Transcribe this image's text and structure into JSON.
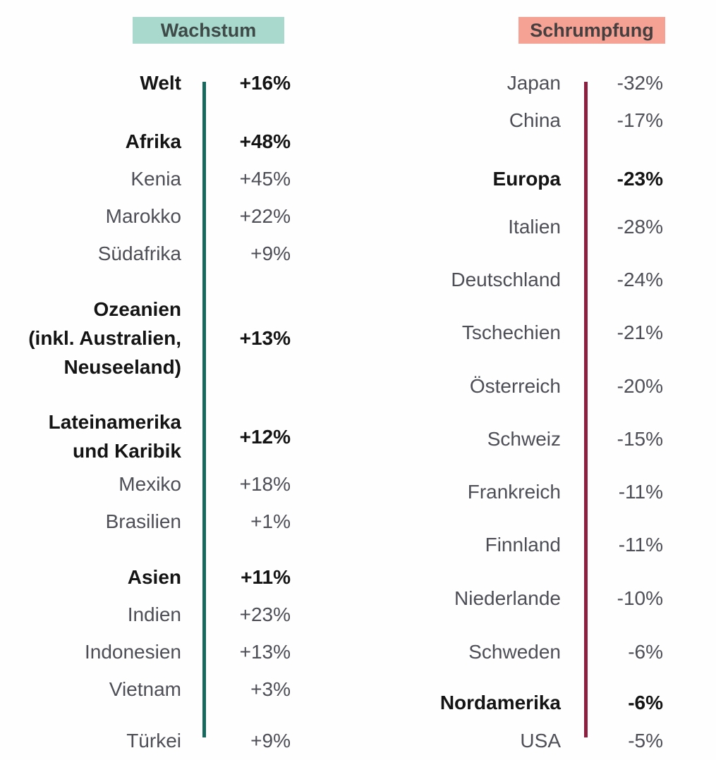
{
  "page": {
    "background": "#fefefe"
  },
  "chart_data": {
    "type": "table",
    "title": "",
    "legend_position": "none",
    "columns": [
      {
        "header": "Wachstum",
        "header_bg": "#a9d8cd",
        "header_text_color": "#3e4a48",
        "line_color": "#17695e",
        "rows": [
          {
            "label": "Welt",
            "value": "+16%",
            "value_num": 16,
            "bold": true,
            "gap": 0
          },
          {
            "label": "Afrika",
            "value": "+48%",
            "value_num": 48,
            "bold": true,
            "gap": 30
          },
          {
            "label": "Kenia",
            "value": "+45%",
            "value_num": 45,
            "bold": false,
            "gap": 0
          },
          {
            "label": "Marokko",
            "value": "+22%",
            "value_num": 22,
            "bold": false,
            "gap": 0
          },
          {
            "label": "Südafrika",
            "value": "+9%",
            "value_num": 9,
            "bold": false,
            "gap": 0
          },
          {
            "label": "Ozeanien (inkl. Australien, Neuseeland)",
            "label_lines": [
              "Ozeanien",
              "(inkl. Australien,",
              "Neuseeland)"
            ],
            "value": "+13%",
            "value_num": 13,
            "bold": true,
            "gap": 32
          },
          {
            "label": "Lateinamerika und Karibik",
            "label_lines": [
              "Lateinamerika",
              "und Karibik"
            ],
            "value": "+12%",
            "value_num": 12,
            "bold": true,
            "gap": 37
          },
          {
            "label": "Mexiko",
            "value": "+18%",
            "value_num": 18,
            "bold": false,
            "gap": 0
          },
          {
            "label": "Brasilien",
            "value": "+1%",
            "value_num": 1,
            "bold": false,
            "gap": 0
          },
          {
            "label": "Asien",
            "value": "+11%",
            "value_num": 11,
            "bold": true,
            "gap": 26
          },
          {
            "label": "Indien",
            "value": "+23%",
            "value_num": 23,
            "bold": false,
            "gap": 0
          },
          {
            "label": "Indonesien",
            "value": "+13%",
            "value_num": 13,
            "bold": false,
            "gap": 0
          },
          {
            "label": "Vietnam",
            "value": "+3%",
            "value_num": 3,
            "bold": false,
            "gap": 0
          },
          {
            "label": "Türkei",
            "value": "+9%",
            "value_num": 9,
            "bold": false,
            "gap": 20
          }
        ]
      },
      {
        "header": "Schrumpfung",
        "header_bg": "#f5a294",
        "header_text_color": "#463f40",
        "line_color": "#8c1f40",
        "rows": [
          {
            "label": "Japan",
            "value": "-32%",
            "value_num": -32,
            "bold": false,
            "gap": 0
          },
          {
            "label": "China",
            "value": "-17%",
            "value_num": -17,
            "bold": false,
            "gap": 0
          },
          {
            "label": "Europa",
            "value": "-23%",
            "value_num": -23,
            "bold": true,
            "gap": 30
          },
          {
            "label": "Italien",
            "value": "-28%",
            "value_num": -28,
            "bold": false,
            "gap": 15
          },
          {
            "label": "Deutschland",
            "value": "-24%",
            "value_num": -24,
            "bold": false,
            "gap": 22
          },
          {
            "label": "Tschechien",
            "value": "-21%",
            "value_num": -21,
            "bold": false,
            "gap": 22
          },
          {
            "label": "Österreich",
            "value": "-20%",
            "value_num": -20,
            "bold": false,
            "gap": 23
          },
          {
            "label": "Schweiz",
            "value": "-15%",
            "value_num": -15,
            "bold": false,
            "gap": 22
          },
          {
            "label": "Frankreich",
            "value": "-11%",
            "value_num": -11,
            "bold": false,
            "gap": 22
          },
          {
            "label": "Finnland",
            "value": "-11%",
            "value_num": -11,
            "bold": false,
            "gap": 22
          },
          {
            "label": "Niederlande",
            "value": "-10%",
            "value_num": -10,
            "bold": false,
            "gap": 23
          },
          {
            "label": "Schweden",
            "value": "-6%",
            "value_num": -6,
            "bold": false,
            "gap": 23
          },
          {
            "label": "Nordamerika",
            "value": "-6%",
            "value_num": -6,
            "bold": true,
            "gap": 19
          },
          {
            "label": "USA",
            "value": "-5%",
            "value_num": -5,
            "bold": false,
            "gap": 1
          }
        ]
      }
    ]
  }
}
